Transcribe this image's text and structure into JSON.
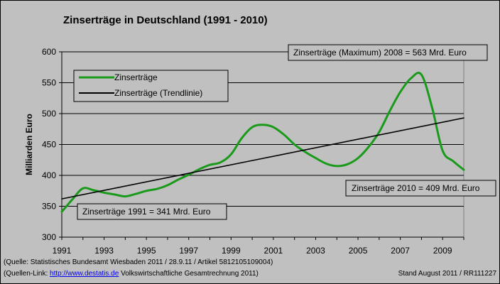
{
  "chart_data": {
    "type": "line",
    "title": "Zinserträge in Deutschland (1991 - 2010)",
    "ylabel": "Milliarden Euro",
    "xlabel": "",
    "xlim": [
      1991,
      2010
    ],
    "ylim": [
      300,
      600
    ],
    "yticks": [
      300,
      350,
      400,
      450,
      500,
      550,
      600
    ],
    "xticks": [
      1991,
      1993,
      1995,
      1997,
      1999,
      2001,
      2003,
      2005,
      2007,
      2009
    ],
    "grid": "horizontal",
    "legend_position": "top-left",
    "series": [
      {
        "name": "Zinserträge",
        "color": "#1a9a1a",
        "x": [
          1991,
          1991.5,
          1992,
          1992.5,
          1993,
          1993.5,
          1994,
          1994.5,
          1995,
          1995.5,
          1996,
          1996.5,
          1997,
          1997.5,
          1998,
          1998.5,
          1999,
          1999.5,
          2000,
          2000.5,
          2001,
          2001.5,
          2002,
          2002.5,
          2003,
          2003.5,
          2004,
          2004.5,
          2005,
          2005.5,
          2006,
          2006.5,
          2007,
          2007.5,
          2008,
          2008.5,
          2009,
          2009.5,
          2010
        ],
        "values": [
          341,
          361,
          379,
          376,
          372,
          369,
          366,
          370,
          375,
          378,
          384,
          393,
          401,
          410,
          417,
          421,
          434,
          460,
          478,
          482,
          478,
          466,
          450,
          438,
          428,
          419,
          415,
          418,
          428,
          446,
          470,
          504,
          535,
          557,
          563,
          510,
          440,
          423,
          409
        ]
      },
      {
        "name": "Zinserträge (Trendlinie)",
        "color": "#000000",
        "x": [
          1991,
          2010
        ],
        "values": [
          362,
          493
        ]
      }
    ],
    "annotations": [
      "Zinserträge (Maximum) 2008 = 563 Mrd. Euro",
      "Zinserträge 2010 = 409 Mrd. Euro",
      "Zinserträge 1991 = 341 Mrd. Euro"
    ]
  },
  "footer": {
    "source_line": "(Quelle: Statistisches Bundesamt Wiesbaden 2011 / 28.9.11 / Artikel 5812105109004)",
    "link_prefix": "(Quellen-Link: ",
    "link_text": "http://www.destatis.de",
    "link_suffix": " Volkswirtschaftliche Gesamtrechnung 2011)",
    "stand": "Stand August 2011  /  RR111227"
  }
}
